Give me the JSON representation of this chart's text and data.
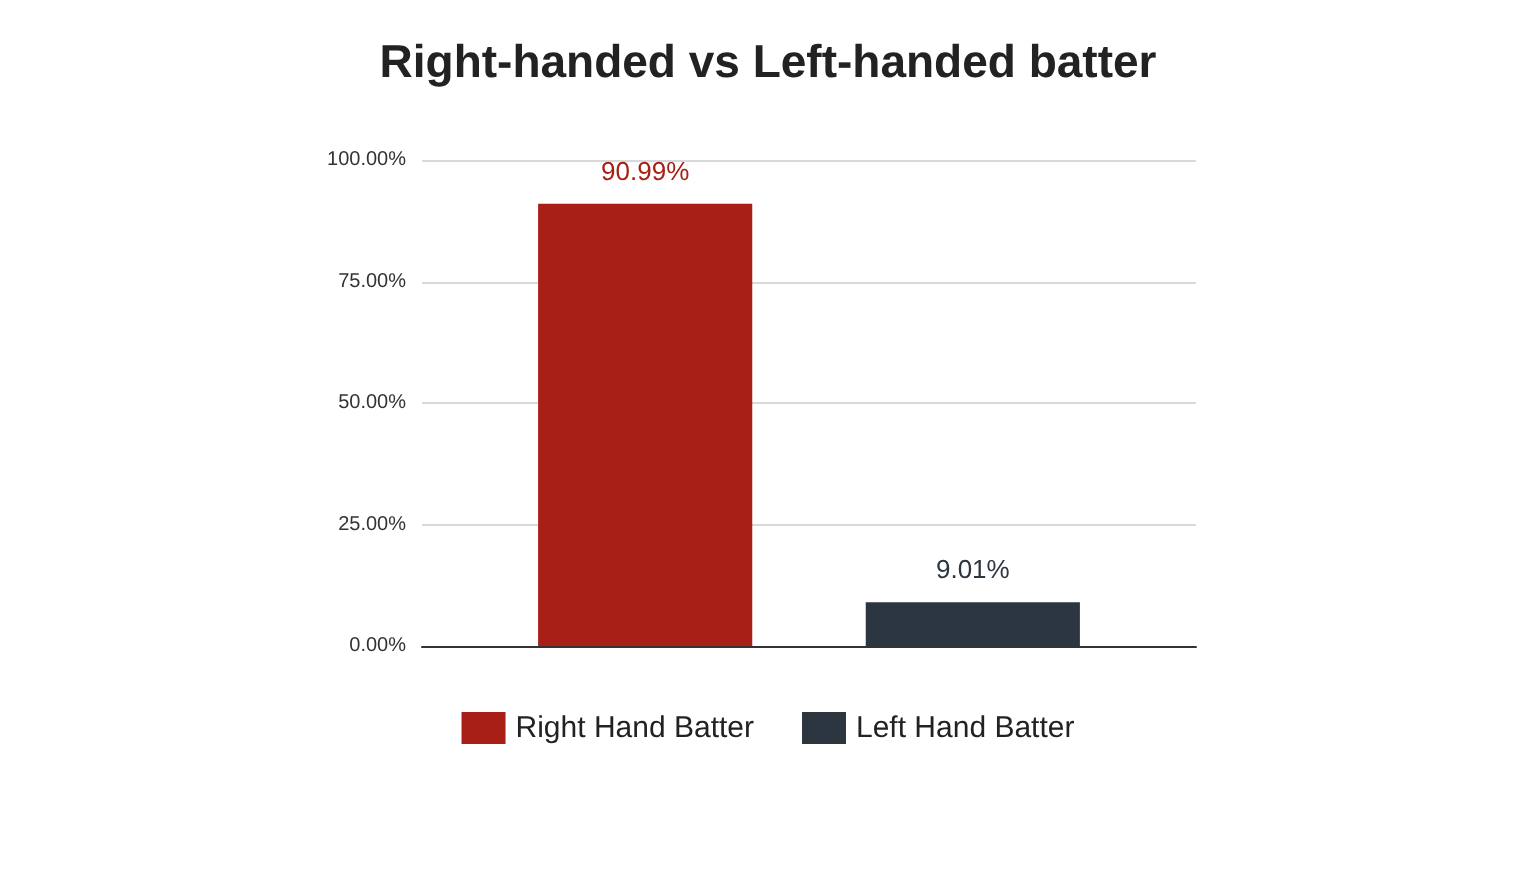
{
  "chart_data": {
    "type": "bar",
    "title": "Right-handed vs Left-handed batter",
    "categories": [
      null
    ],
    "series": [
      {
        "name": "Right Hand Batter",
        "color": "#a82015",
        "values": [
          90.99
        ],
        "value_labels": [
          "90.99%"
        ]
      },
      {
        "name": "Left Hand Batter",
        "color": "#2c3640",
        "values": [
          9.01
        ],
        "value_labels": [
          "9.01%"
        ]
      }
    ],
    "ylim": [
      0,
      100
    ],
    "yticks": [
      {
        "value": 0,
        "label": "0.00%"
      },
      {
        "value": 25,
        "label": "25.00%"
      },
      {
        "value": 50,
        "label": "50.00%"
      },
      {
        "value": 75,
        "label": "75.00%"
      },
      {
        "value": 100,
        "label": "100.00%"
      }
    ],
    "grid": "y",
    "legend": "bottom"
  }
}
